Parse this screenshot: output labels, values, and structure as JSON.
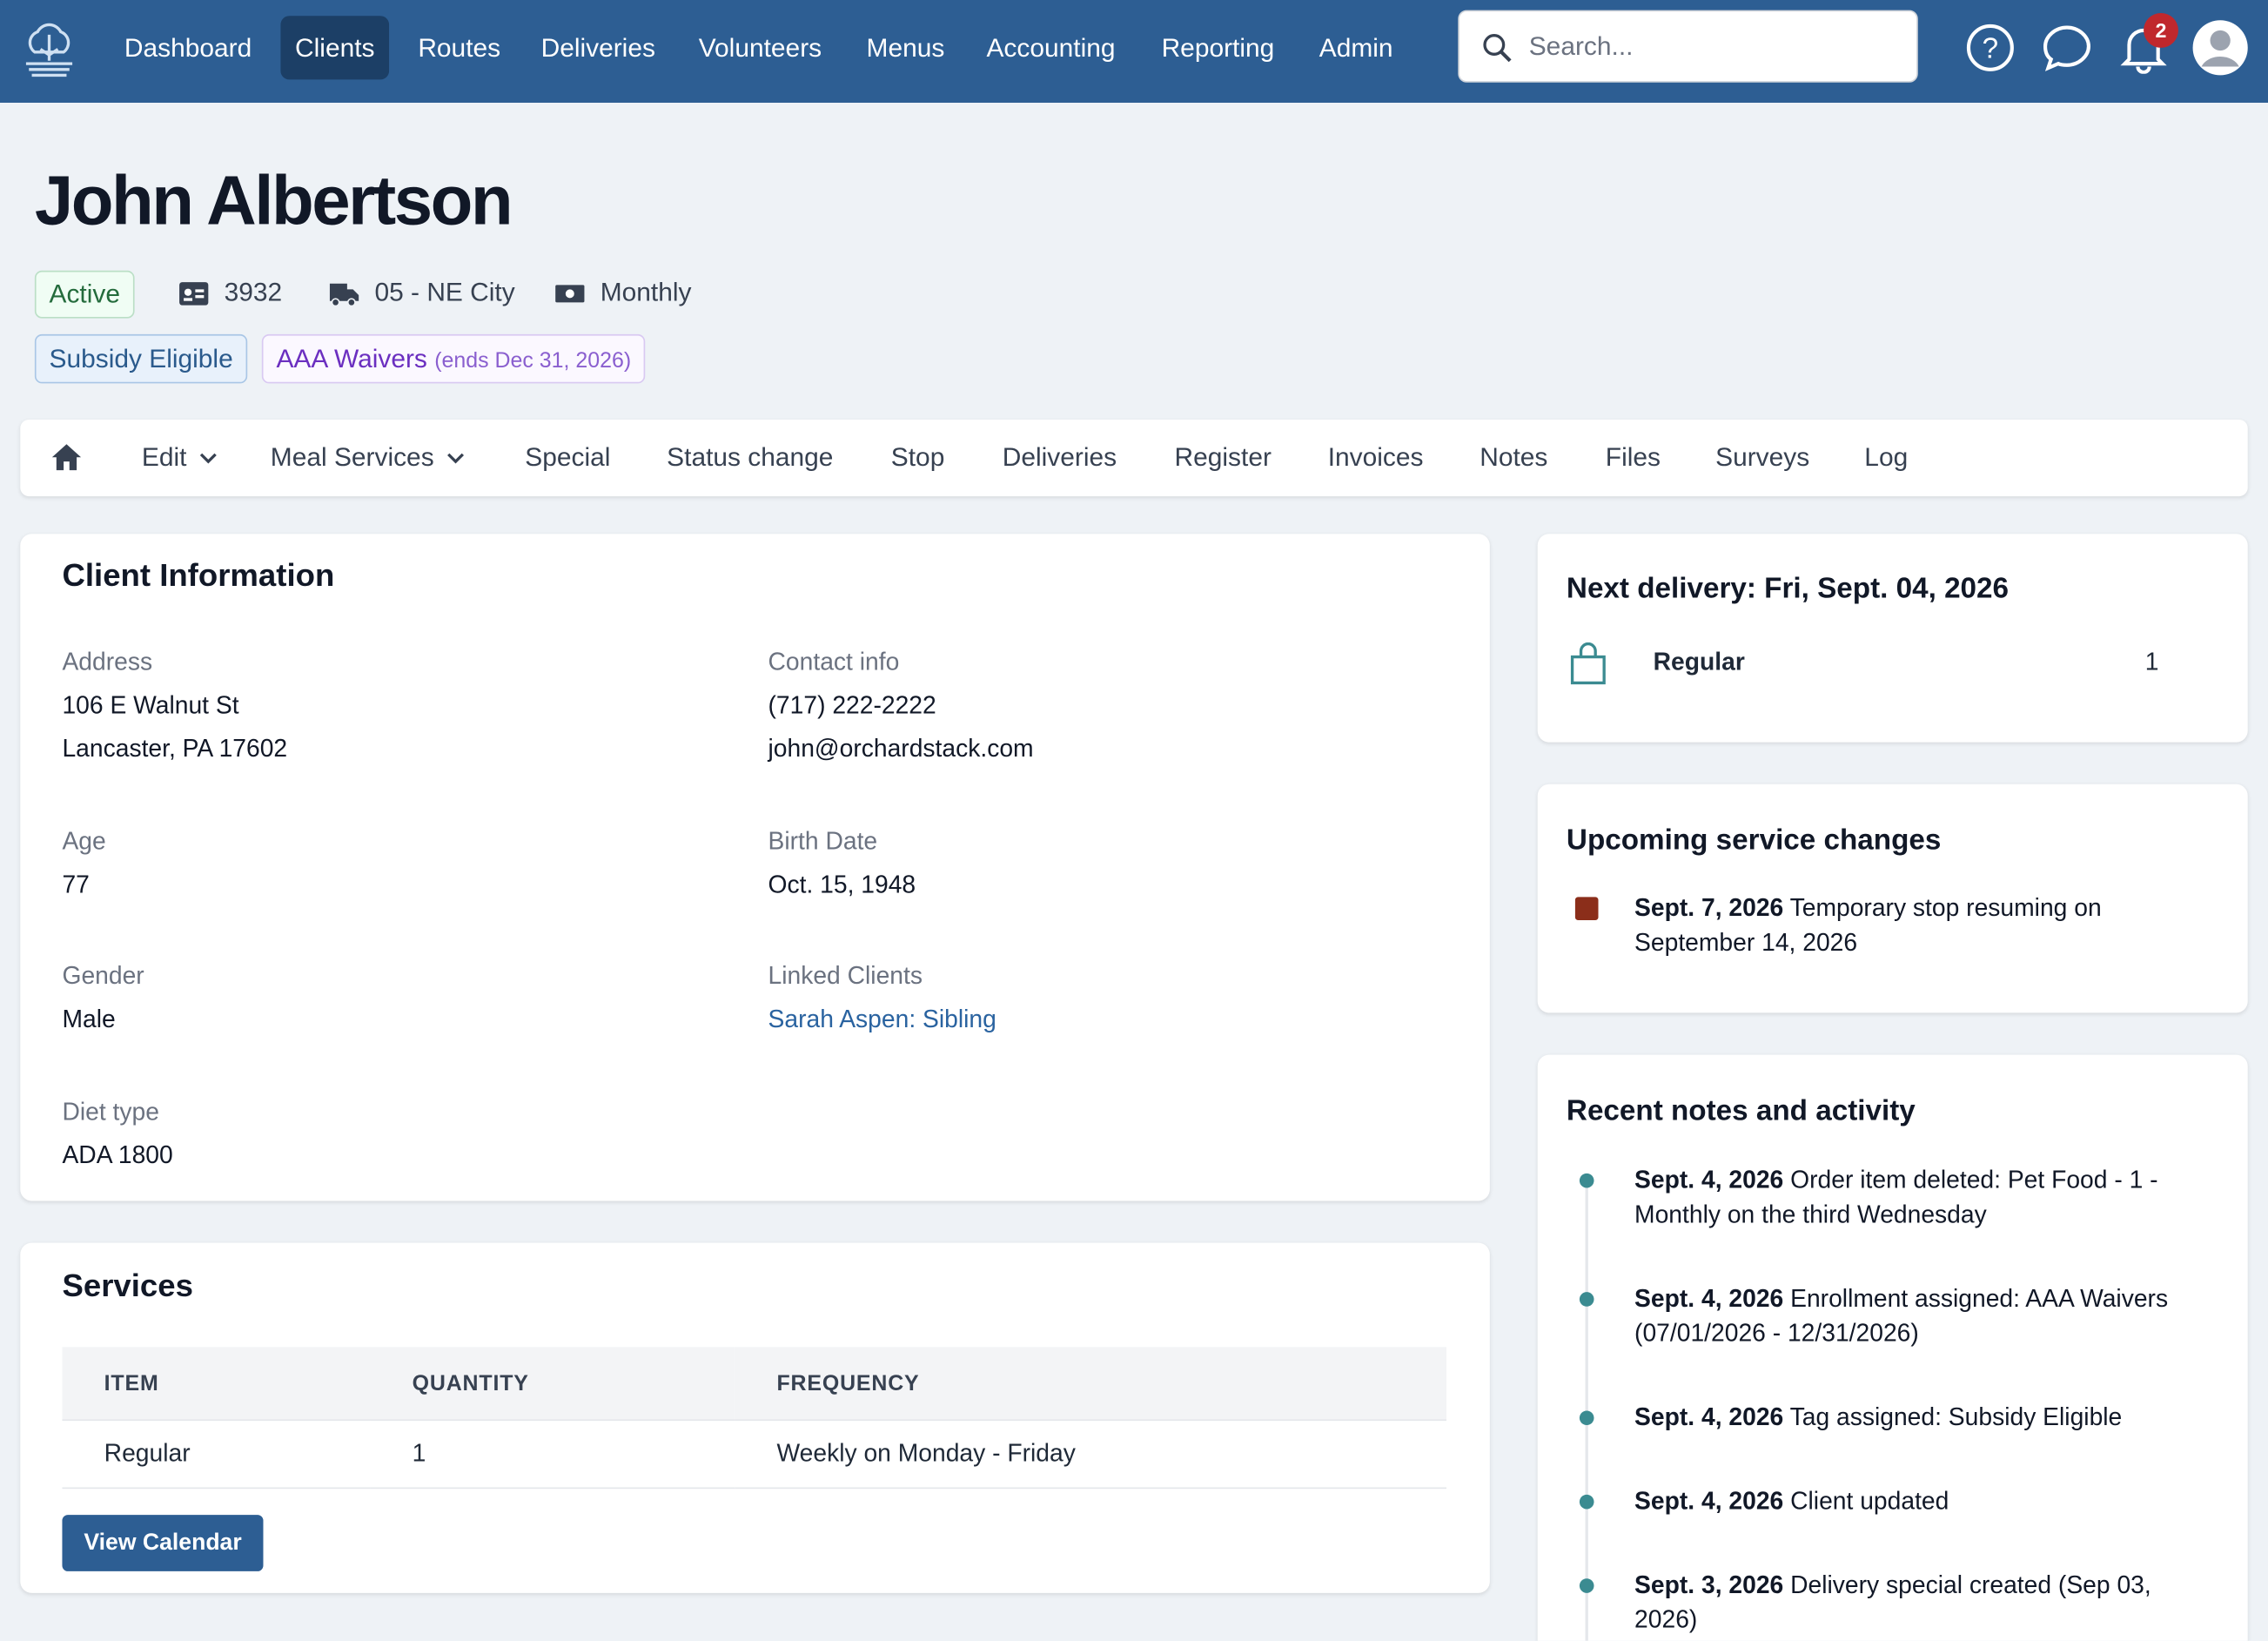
{
  "nav": {
    "items": [
      "Dashboard",
      "Clients",
      "Routes",
      "Deliveries",
      "Volunteers",
      "Menus",
      "Accounting",
      "Reporting",
      "Admin"
    ],
    "search_placeholder": "Search...",
    "notification_count": "2"
  },
  "header": {
    "name": "John Albertson",
    "status": "Active",
    "client_id": "3932",
    "route": "05 - NE City",
    "billing": "Monthly",
    "tags": [
      {
        "label": "Subsidy Eligible"
      },
      {
        "label": "AAA Waivers",
        "note": "(ends Dec 31, 2026)"
      }
    ]
  },
  "tabs": [
    "Edit",
    "Meal Services",
    "Special",
    "Status change",
    "Stop",
    "Deliveries",
    "Register",
    "Invoices",
    "Notes",
    "Files",
    "Surveys",
    "Log"
  ],
  "client_info": {
    "title": "Client Information",
    "fields": [
      {
        "label": "Address",
        "lines": [
          "106 E Walnut St",
          "Lancaster, PA 17602"
        ]
      },
      {
        "label": "Contact info",
        "lines": [
          "(717) 222-2222",
          "john@orchardstack.com"
        ]
      },
      {
        "label": "Age",
        "lines": [
          "77"
        ]
      },
      {
        "label": "Birth Date",
        "lines": [
          "Oct. 15, 1948"
        ]
      },
      {
        "label": "Gender",
        "lines": [
          "Male"
        ]
      },
      {
        "label": "Linked Clients",
        "lines": [
          "Sarah Aspen: Sibling"
        ]
      },
      {
        "label": "Diet type",
        "lines": [
          "ADA 1800"
        ]
      }
    ]
  },
  "services": {
    "title": "Services",
    "columns": [
      "ITEM",
      "QUANTITY",
      "FREQUENCY"
    ],
    "rows": [
      [
        "Regular",
        "1",
        "Weekly on Monday - Friday"
      ]
    ],
    "button": "View Calendar"
  },
  "next_delivery": {
    "title": "Next delivery: Fri, Sept. 04, 2026",
    "items": [
      {
        "name": "Regular",
        "quantity": "1"
      }
    ]
  },
  "upcoming_changes": {
    "title": "Upcoming service changes",
    "items": [
      {
        "date": "Sept. 7, 2026",
        "text": "Temporary stop resuming on September 14, 2026"
      }
    ]
  },
  "recent_activity": {
    "title": "Recent notes and activity",
    "items": [
      {
        "date": "Sept. 4, 2026",
        "text": "Order item deleted: Pet Food - 1 - Monthly on the third Wednesday"
      },
      {
        "date": "Sept. 4, 2026",
        "text": "Enrollment assigned: AAA Waivers (07/01/2026 - 12/31/2026)"
      },
      {
        "date": "Sept. 4, 2026",
        "text": "Tag assigned: Subsidy Eligible"
      },
      {
        "date": "Sept. 4, 2026",
        "text": "Client updated"
      },
      {
        "date": "Sept. 3, 2026",
        "text": "Delivery special created (Sep 03, 2026)"
      }
    ]
  }
}
